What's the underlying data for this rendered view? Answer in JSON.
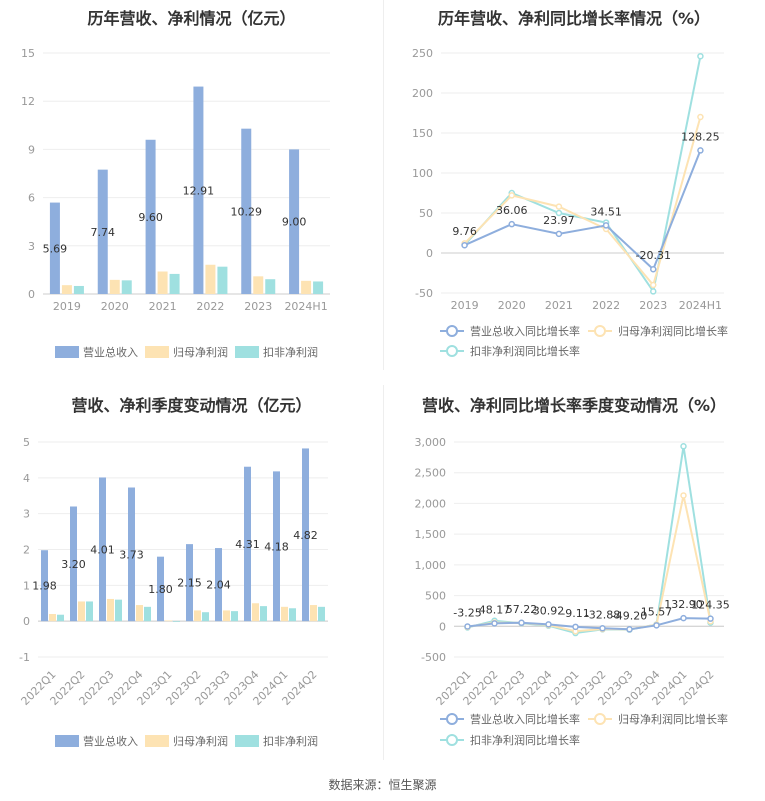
{
  "colors": {
    "revenue": "#8eaedd",
    "net_profit": "#fde3b3",
    "deducted_profit": "#9fe0e0",
    "grid": "#eeeeee",
    "axis": "#cccccc"
  },
  "source_text": "数据来源：恒生聚源",
  "chart_data": [
    {
      "type": "bar",
      "title": "历年营收、净利情况（亿元）",
      "categories": [
        "2019",
        "2020",
        "2021",
        "2022",
        "2023",
        "2024H1"
      ],
      "ylim": [
        0,
        15
      ],
      "yticks": [
        0,
        3,
        6,
        9,
        12,
        15
      ],
      "series": [
        {
          "name": "营业总收入",
          "values": [
            5.69,
            7.74,
            9.6,
            12.91,
            10.29,
            9.0
          ],
          "labels": [
            "5.69",
            "7.74",
            "9.60",
            "12.91",
            "10.29",
            "9.00"
          ]
        },
        {
          "name": "归母净利润",
          "values": [
            0.55,
            0.88,
            1.4,
            1.82,
            1.1,
            0.82
          ]
        },
        {
          "name": "扣非净利润",
          "values": [
            0.5,
            0.85,
            1.25,
            1.7,
            0.92,
            0.78
          ]
        }
      ],
      "grid": true,
      "legend": "bottom"
    },
    {
      "type": "line",
      "title": "历年营收、净利同比增长率情况（%）",
      "categories": [
        "2019",
        "2020",
        "2021",
        "2022",
        "2023",
        "2024H1"
      ],
      "ylim": [
        -50,
        250
      ],
      "yticks": [
        -50,
        0,
        50,
        100,
        150,
        200,
        250
      ],
      "series": [
        {
          "name": "营业总收入同比增长率",
          "values": [
            9.76,
            36.06,
            23.97,
            34.51,
            -20.31,
            128.25
          ],
          "labels": [
            "9.76",
            "36.06",
            "23.97",
            "34.51",
            "-20.31",
            "128.25"
          ]
        },
        {
          "name": "归母净利润同比增长率",
          "values": [
            12,
            72,
            58,
            30,
            -40,
            170
          ]
        },
        {
          "name": "扣非净利润同比增长率",
          "values": [
            10,
            75,
            50,
            38,
            -48,
            246
          ]
        }
      ],
      "grid": true,
      "legend": "bottom"
    },
    {
      "type": "bar",
      "title": "营收、净利季度变动情况（亿元）",
      "categories": [
        "2022Q1",
        "2022Q2",
        "2022Q3",
        "2022Q4",
        "2023Q1",
        "2023Q2",
        "2023Q3",
        "2023Q4",
        "2024Q1",
        "2024Q2"
      ],
      "ylim": [
        -1,
        5
      ],
      "yticks": [
        -1,
        0,
        1,
        2,
        3,
        4,
        5
      ],
      "series": [
        {
          "name": "营业总收入",
          "values": [
            1.98,
            3.2,
            4.01,
            3.73,
            1.8,
            2.15,
            2.04,
            4.31,
            4.18,
            4.82
          ],
          "labels": [
            "1.98",
            "3.20",
            "4.01",
            "3.73",
            "1.80",
            "2.15",
            "2.04",
            "4.31",
            "4.18",
            "4.82"
          ]
        },
        {
          "name": "归母净利润",
          "values": [
            0.2,
            0.55,
            0.62,
            0.45,
            0.02,
            0.3,
            0.3,
            0.5,
            0.4,
            0.45
          ]
        },
        {
          "name": "扣非净利润",
          "values": [
            0.18,
            0.55,
            0.6,
            0.4,
            -0.02,
            0.25,
            0.28,
            0.42,
            0.36,
            0.4
          ]
        }
      ],
      "grid": true,
      "legend": "bottom"
    },
    {
      "type": "line",
      "title": "营收、净利同比增长率季度变动情况（%）",
      "categories": [
        "2022Q1",
        "2022Q2",
        "2022Q3",
        "2022Q4",
        "2023Q1",
        "2023Q2",
        "2023Q3",
        "2023Q4",
        "2024Q1",
        "2024Q2"
      ],
      "ylim": [
        -500,
        3000
      ],
      "yticks": [
        -500,
        0,
        500,
        1000,
        1500,
        2000,
        2500,
        3000
      ],
      "ytick_labels": [
        "-500",
        "0",
        "500",
        "1,000",
        "1,500",
        "2,000",
        "2,500",
        "3,000"
      ],
      "series": [
        {
          "name": "营业总收入同比增长率",
          "values": [
            -3.25,
            48.17,
            57.22,
            30.92,
            -9.11,
            -32.88,
            -49.2,
            15.57,
            132.9,
            124.35
          ],
          "labels": [
            "-3.25",
            "48.17",
            "57.22",
            "30.92",
            "-9.11",
            "-32.88",
            "-49.20",
            "15.57",
            "132.90",
            "124.35"
          ]
        },
        {
          "name": "归母净利润同比增长率",
          "values": [
            -10,
            60,
            55,
            20,
            -80,
            -45,
            -50,
            25,
            2130,
            80
          ]
        },
        {
          "name": "扣非净利润同比增长率",
          "values": [
            -20,
            90,
            50,
            10,
            -110,
            -50,
            -55,
            30,
            2930,
            60
          ]
        }
      ],
      "grid": true,
      "legend": "bottom"
    }
  ]
}
